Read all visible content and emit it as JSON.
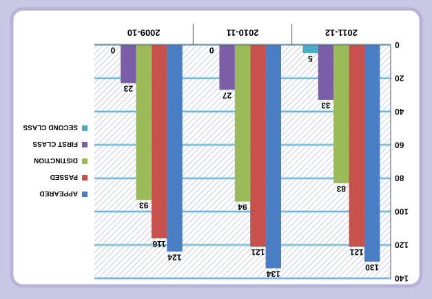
{
  "chart_data": {
    "type": "bar",
    "orientation": "vertical",
    "rendering": "rotated-180",
    "categories": [
      "2011-12",
      "2010-11",
      "2009-10"
    ],
    "series": [
      {
        "name": "APPEARED",
        "color": "#4a7ec4",
        "values": [
          130,
          134,
          124
        ]
      },
      {
        "name": "PASSED",
        "color": "#c8504d",
        "values": [
          121,
          121,
          116
        ]
      },
      {
        "name": "DISTINCTION",
        "color": "#9bbb59",
        "values": [
          83,
          94,
          93
        ]
      },
      {
        "name": "FIRST CLASS",
        "color": "#7b5ea6",
        "values": [
          33,
          27,
          23
        ]
      },
      {
        "name": "SECOND CLASS",
        "color": "#4bacc6",
        "values": [
          5,
          0,
          0
        ]
      }
    ],
    "data_labels": [
      [
        "130",
        "121",
        "83",
        "33",
        "5"
      ],
      [
        "134",
        "121",
        "94",
        "27",
        "0"
      ],
      [
        "124",
        "116",
        "93",
        "23",
        "0"
      ]
    ],
    "y_ticks": [
      "0",
      "20",
      "40",
      "60",
      "80",
      "100",
      "120",
      "140"
    ],
    "ylim": [
      0,
      140
    ],
    "grid": true,
    "legend_position": "left"
  }
}
